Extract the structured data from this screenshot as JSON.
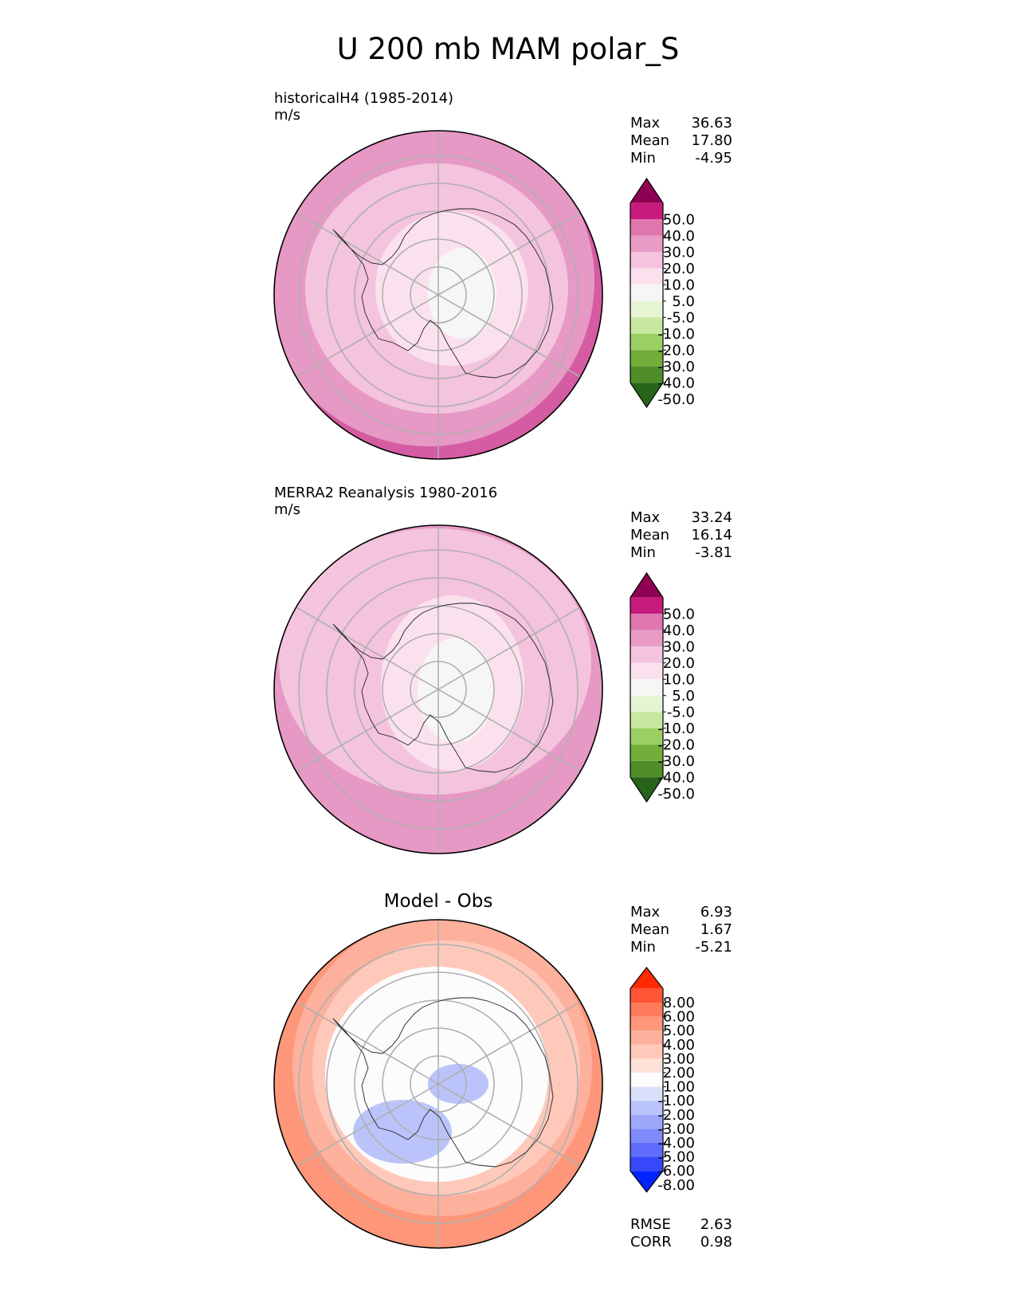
{
  "title": "U 200 mb MAM polar_S",
  "panels": [
    {
      "title": "historicalH4 (1985-2014)",
      "units": "m/s",
      "stats": [
        {
          "label": "Max",
          "value": "36.63"
        },
        {
          "label": "Mean",
          "value": "17.80"
        },
        {
          "label": "Min",
          "value": "-4.95"
        }
      ]
    },
    {
      "title": "MERRA2 Reanalysis 1980-2016",
      "units": "m/s",
      "stats": [
        {
          "label": "Max",
          "value": "33.24"
        },
        {
          "label": "Mean",
          "value": "16.14"
        },
        {
          "label": "Min",
          "value": "-3.81"
        }
      ]
    },
    {
      "title": "Model - Obs",
      "units": "",
      "stats": [
        {
          "label": "Max",
          "value": "6.93"
        },
        {
          "label": "Mean",
          "value": "1.67"
        },
        {
          "label": "Min",
          "value": "-5.21"
        }
      ],
      "metrics": [
        {
          "label": "RMSE",
          "value": "2.63"
        },
        {
          "label": "CORR",
          "value": "0.98"
        }
      ]
    }
  ],
  "colorbars": {
    "field": {
      "labels": [
        "50.0",
        "40.0",
        "30.0",
        "20.0",
        "10.0",
        "5.0",
        "-5.0",
        "-10.0",
        "-20.0",
        "-30.0",
        "-40.0",
        "-50.0"
      ],
      "colors": [
        "#8e0152",
        "#c51b7d",
        "#de77ae",
        "#e99bc5",
        "#f4c3dd",
        "#fbe1ee",
        "#f6f6f4",
        "#e6f4d2",
        "#c8e8a2",
        "#9ccf63",
        "#72ae3a",
        "#4f8e29",
        "#276419"
      ]
    },
    "diff": {
      "labels": [
        "8.00",
        "6.00",
        "5.00",
        "4.00",
        "3.00",
        "2.00",
        "1.00",
        "-1.00",
        "-2.00",
        "-3.00",
        "-4.00",
        "-5.00",
        "-6.00",
        "-8.00"
      ],
      "colors": [
        "#ff2b00",
        "#ff5535",
        "#ff7a5a",
        "#fe9679",
        "#fdb09c",
        "#fec9ba",
        "#fde1d9",
        "#fcfcfc",
        "#dbe0fb",
        "#bac4fb",
        "#9ea8fb",
        "#7f8afb",
        "#5f6bfb",
        "#3747fb",
        "#0324ff"
      ]
    }
  },
  "map_fields": {
    "panel1": [
      "#d55ca3",
      "#e699c4",
      "#f4c3dd",
      "#fbe1ee",
      "#f6f6f4"
    ],
    "panel2": [
      "#e699c4",
      "#f4c3dd",
      "#fbe1ee",
      "#f6f6f4"
    ],
    "panel3": [
      "#fe9679",
      "#fdb09c",
      "#fec9ba",
      "#fcfcfc",
      "#bac4fb"
    ]
  }
}
